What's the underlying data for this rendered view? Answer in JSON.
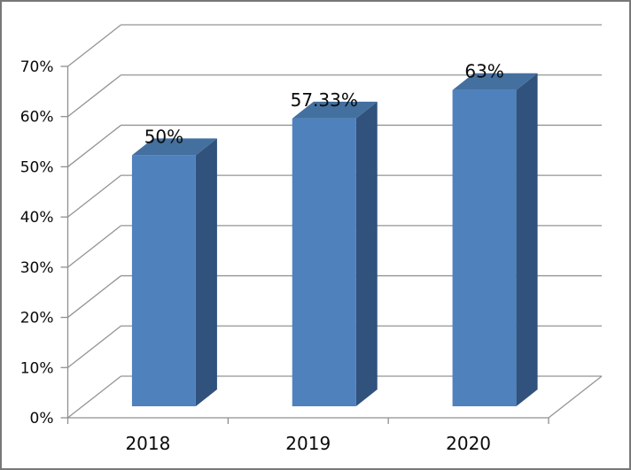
{
  "chart_data": {
    "type": "bar",
    "subtype": "3d-column",
    "title": "",
    "categories": [
      "2018",
      "2019",
      "2020"
    ],
    "values": [
      50,
      57.33,
      63
    ],
    "data_labels": [
      "50%",
      "57.33%",
      "63%"
    ],
    "y_axis": {
      "min": 0,
      "max": 70,
      "step": 10,
      "tick_labels": [
        "0%",
        "10%",
        "20%",
        "30%",
        "40%",
        "50%",
        "60%",
        "70%"
      ]
    },
    "grid": true,
    "legend": "none",
    "colors": {
      "bar_front": "#4f81bd",
      "bar_top": "#43709f",
      "bar_side": "#30527c",
      "gridline": "#949494",
      "axis_line": "#8f8f8f",
      "text": "#0a0a0a",
      "frame_border": "#787878",
      "background": "#ffffff"
    }
  }
}
